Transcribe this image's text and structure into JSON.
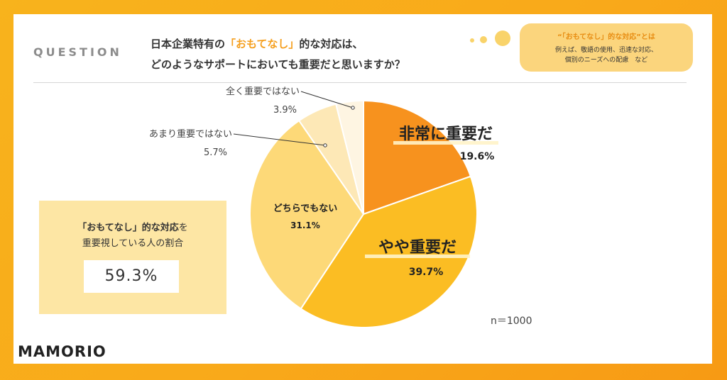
{
  "header": {
    "question_label": "QUESTION",
    "question_line1_pre": "日本企業特有の",
    "question_line1_hl": "「おもてなし」",
    "question_line1_post": "的な対応は、",
    "question_line2": "どのようなサポートにおいても重要だと思いますか？"
  },
  "note": {
    "title": "“「おもてなし」的な対応”とは",
    "body_line1": "例えば、敬語の使用、迅速な対応、",
    "body_line2": "個別のニーズへの配慮　など"
  },
  "summary": {
    "label_line1_bold": "「おもてなし」的な対応",
    "label_line1_suffix": "を",
    "label_line2": "重要視している人の割合",
    "value": "59.3%"
  },
  "sample_size": "n＝1000",
  "brand": {
    "logo_text": "MAMORIO"
  },
  "colors": {
    "very_important": "#f7921e",
    "somewhat_important": "#fbbd23",
    "neither": "#fdd978",
    "not_very": "#fde8b6",
    "not_at_all": "#fef5e2"
  },
  "chart_data": {
    "type": "pie",
    "start_angle_deg": 0,
    "direction": "clockwise",
    "slices": [
      {
        "label": "非常に重要だ",
        "value": 19.6,
        "value_label": "19.6%",
        "color": "#f7921e"
      },
      {
        "label": "やや重要だ",
        "value": 39.7,
        "value_label": "39.7%",
        "color": "#fbbd23"
      },
      {
        "label": "どちらでもない",
        "value": 31.1,
        "value_label": "31.1%",
        "color": "#fdd978"
      },
      {
        "label": "あまり重要ではない",
        "value": 5.7,
        "value_label": "5.7%",
        "color": "#fde8b6"
      },
      {
        "label": "全く重要ではない",
        "value": 3.9,
        "value_label": "3.9%",
        "color": "#fef5e2"
      }
    ]
  }
}
